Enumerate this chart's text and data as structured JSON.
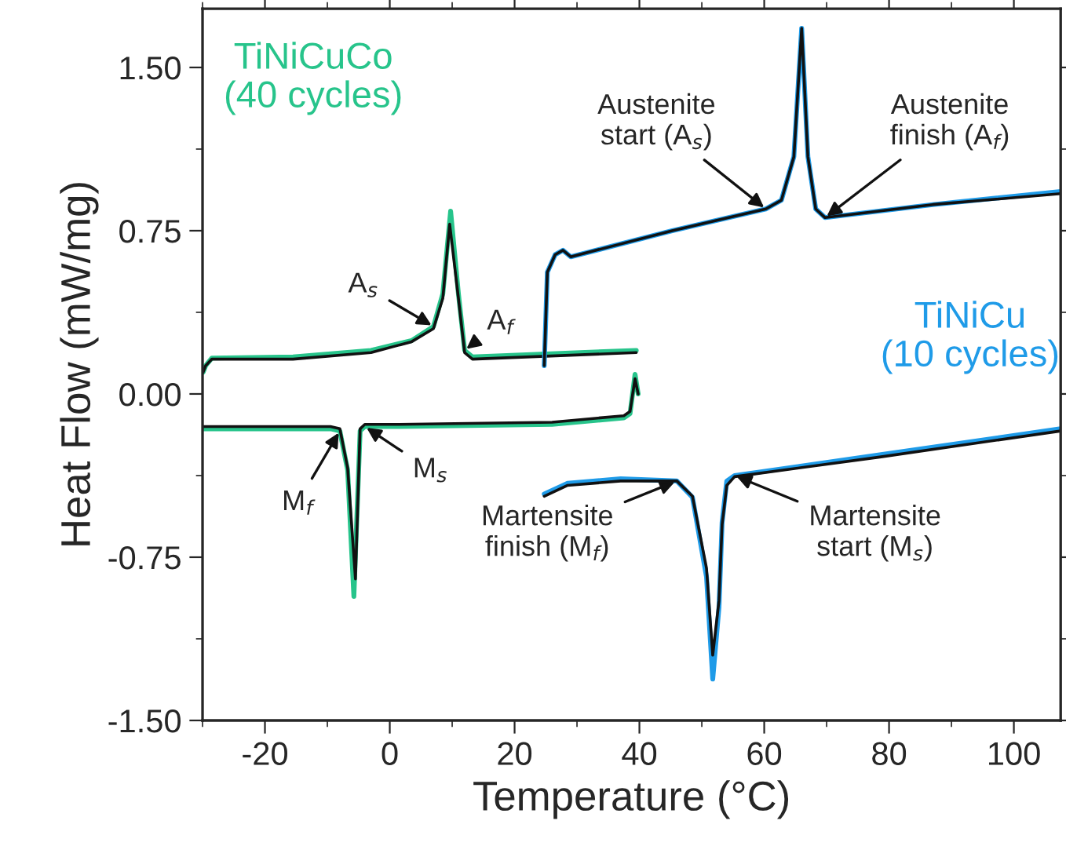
{
  "chart_data": {
    "type": "line",
    "xlabel": "Temperature (°C)",
    "ylabel": "Heat Flow (mW/mg)",
    "xlim": [
      -30,
      107.5
    ],
    "ylim": [
      -1.5,
      1.77
    ],
    "xticks": [
      -20,
      0,
      20,
      40,
      60,
      80,
      100
    ],
    "yticks": [
      {
        "value": 1.5,
        "label": "1.50"
      },
      {
        "value": 0.75,
        "label": "0.75"
      },
      {
        "value": 0,
        "label": "0.00"
      },
      {
        "value": -0.75,
        "label": "-0.75"
      },
      {
        "value": -1.5,
        "label": "-1.50"
      }
    ],
    "grid": false,
    "legend": false,
    "series": [
      {
        "name": "TiNiCuCo\n(40 cycles)",
        "color": "#27c48b",
        "x": [
          -29.9,
          -29.5,
          -28.5,
          -15.5,
          -3,
          3.5,
          7,
          8.5,
          9.75,
          11,
          12,
          13.25,
          39.5,
          null,
          39.8,
          39.3,
          38.5,
          37.5,
          26,
          1,
          -4,
          -4.75,
          -5.75,
          -6.75,
          -8,
          -9.5,
          -29.9
        ],
        "values": [
          0.1,
          0.13,
          0.165,
          0.17,
          0.2,
          0.245,
          0.31,
          0.46,
          0.84,
          0.46,
          0.2,
          0.17,
          0.2,
          null,
          0.0,
          0.09,
          -0.09,
          -0.11,
          -0.14,
          -0.15,
          -0.15,
          -0.17,
          -0.93,
          -0.35,
          -0.17,
          -0.16,
          -0.16
        ]
      },
      {
        "color": "#111111",
        "x": [
          -29.9,
          -29.5,
          -28.5,
          -15.5,
          -3,
          3.5,
          7,
          8.5,
          9.6,
          11,
          12,
          13.25,
          39.5,
          null,
          39.8,
          39.3,
          38.5,
          37.5,
          26,
          1,
          -4,
          -4.75,
          -5.5,
          -6.75,
          -8,
          -9.5,
          -29.9
        ],
        "values": [
          0.1,
          0.13,
          0.16,
          0.16,
          0.19,
          0.24,
          0.3,
          0.44,
          0.78,
          0.44,
          0.19,
          0.16,
          0.19,
          null,
          0.0,
          0.07,
          -0.08,
          -0.1,
          -0.13,
          -0.14,
          -0.14,
          -0.16,
          -0.85,
          -0.34,
          -0.16,
          -0.15,
          -0.15
        ]
      },
      {
        "name": "TiNiCu\n(10 cycles)",
        "color": "#1f9be8",
        "x": [
          24.75,
          25.25,
          26.5,
          27.75,
          29,
          45.25,
          60.25,
          62.75,
          64.75,
          66,
          67,
          68.25,
          69.75,
          87,
          107.5,
          null,
          107.5,
          78.5,
          55.25,
          54,
          53.25,
          52.75,
          51.75,
          50.75,
          48.5,
          46,
          37,
          28.5,
          24.75
        ],
        "values": [
          0.13,
          0.56,
          0.64,
          0.66,
          0.63,
          0.75,
          0.85,
          0.89,
          1.09,
          1.68,
          1.09,
          0.85,
          0.81,
          0.87,
          0.93,
          null,
          -0.16,
          -0.28,
          -0.375,
          -0.4,
          -0.59,
          -0.98,
          -1.31,
          -0.84,
          -0.475,
          -0.4,
          -0.39,
          -0.41,
          -0.46
        ]
      },
      {
        "color": "#111111",
        "x": [
          24.75,
          25.25,
          26.5,
          27.75,
          29,
          45.25,
          60.25,
          62.75,
          64.75,
          66,
          67,
          68.25,
          69.75,
          87,
          107.5,
          null,
          107.5,
          78.5,
          55.25,
          54,
          53.25,
          52.75,
          51.75,
          50.75,
          48.5,
          46,
          37,
          28.5,
          24.75
        ],
        "values": [
          0.13,
          0.56,
          0.64,
          0.66,
          0.63,
          0.75,
          0.85,
          0.89,
          1.09,
          1.68,
          1.09,
          0.85,
          0.81,
          0.87,
          0.92,
          null,
          -0.17,
          -0.29,
          -0.38,
          -0.42,
          -0.6,
          -0.95,
          -1.2,
          -0.8,
          -0.47,
          -0.4,
          -0.4,
          -0.42,
          -0.47
        ]
      }
    ],
    "annotations": [
      {
        "text": "A$_{s}$",
        "x": 7,
        "y": 0.31
      },
      {
        "text": "A$_{f}$",
        "x": 12,
        "y": 0.2
      },
      {
        "text": "M$_{f}$",
        "x": -8,
        "y": -0.17
      },
      {
        "text": "M$_{s}$",
        "x": -4,
        "y": -0.15
      },
      {
        "text": "Austenite\nstart (A$_{s}$)",
        "x": 60.25,
        "y": 0.85
      },
      {
        "text": "Austenite\nfinish (A$_{f}$)",
        "x": 69.75,
        "y": 0.81
      },
      {
        "text": "Martensite\nfinish (M$_{f}$)",
        "x": 46,
        "y": -0.4
      },
      {
        "text": "Martensite\nstart (M$_{s}$)",
        "x": 55.25,
        "y": -0.375
      }
    ]
  }
}
